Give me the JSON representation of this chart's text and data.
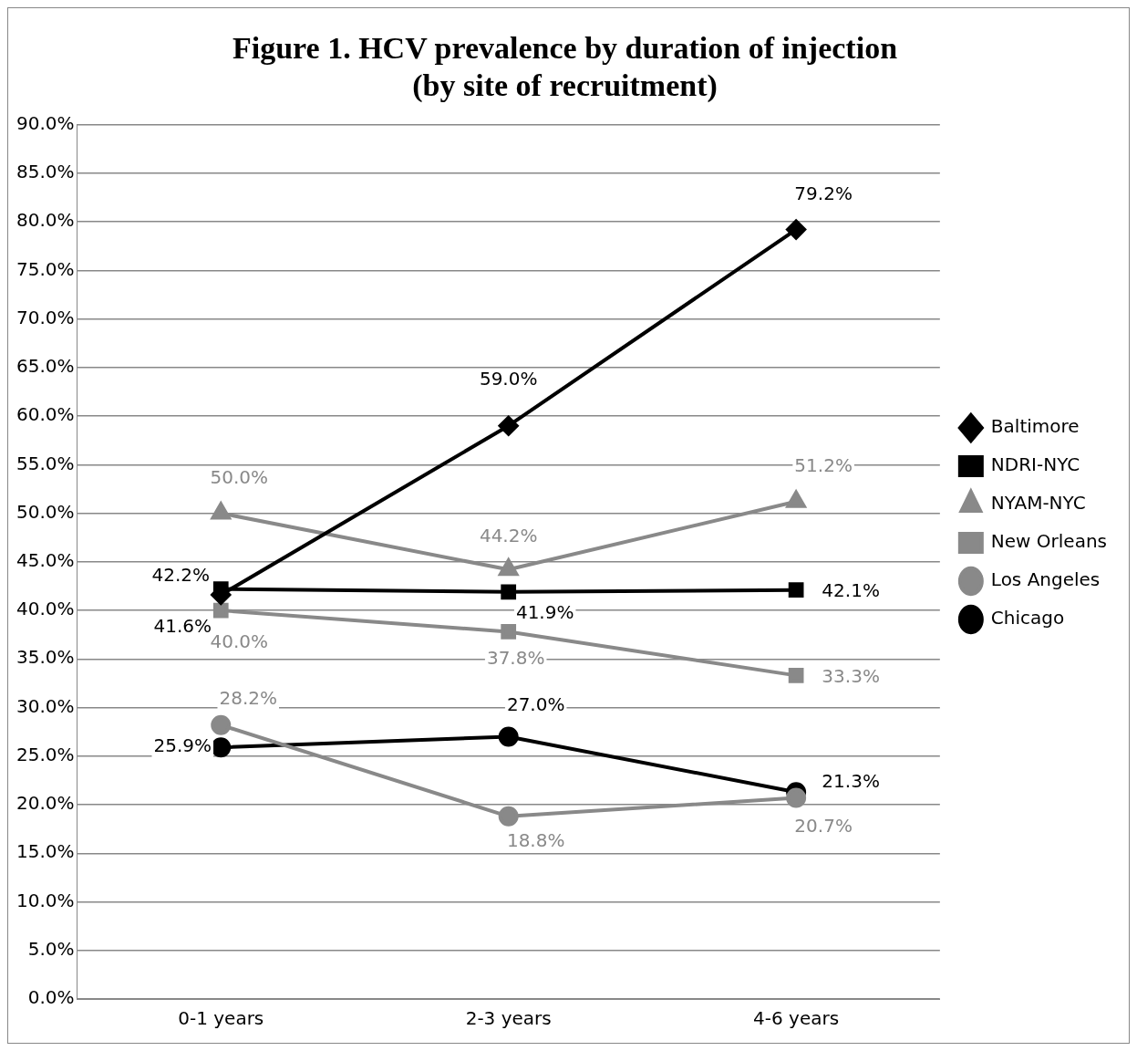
{
  "chart_data": {
    "type": "line",
    "title": "Figure 1. HCV prevalence by duration of injection\n(by site of recruitment)",
    "categories": [
      "0-1 years",
      "2-3 years",
      "4-6 years"
    ],
    "series": [
      {
        "name": "Baltimore",
        "color": "#000000",
        "marker": "diamond",
        "values": [
          41.6,
          59.0,
          79.2
        ],
        "value_labels": [
          "41.6%",
          "59.0%",
          "79.2%"
        ]
      },
      {
        "name": "NDRI-NYC",
        "color": "#000000",
        "marker": "square",
        "values": [
          42.2,
          41.9,
          42.1
        ],
        "value_labels": [
          "42.2%",
          "41.9%",
          "42.1%"
        ]
      },
      {
        "name": "NYAM-NYC",
        "color": "#898989",
        "marker": "triangle",
        "values": [
          50.0,
          44.2,
          51.2
        ],
        "value_labels": [
          "50.0%",
          "44.2%",
          "51.2%"
        ]
      },
      {
        "name": "New Orleans",
        "color": "#898989",
        "marker": "square",
        "values": [
          40.0,
          37.8,
          33.3
        ],
        "value_labels": [
          "40.0%",
          "37.8%",
          "33.3%"
        ]
      },
      {
        "name": "Los Angeles",
        "color": "#898989",
        "marker": "circle",
        "values": [
          28.2,
          18.8,
          20.7
        ],
        "value_labels": [
          "28.2%",
          "18.8%",
          "20.7%"
        ]
      },
      {
        "name": "Chicago",
        "color": "#000000",
        "marker": "circle",
        "values": [
          25.9,
          27.0,
          21.3
        ],
        "value_labels": [
          "25.9%",
          "27.0%",
          "21.3%"
        ]
      }
    ],
    "ylim": [
      0,
      90
    ],
    "yticks": [
      {
        "value": 0,
        "label": "0.0%"
      },
      {
        "value": 5,
        "label": "5.0%"
      },
      {
        "value": 10,
        "label": "10.0%"
      },
      {
        "value": 15,
        "label": "15.0%"
      },
      {
        "value": 20,
        "label": "20.0%"
      },
      {
        "value": 25,
        "label": "25.0%"
      },
      {
        "value": 30,
        "label": "30.0%"
      },
      {
        "value": 35,
        "label": "35.0%"
      },
      {
        "value": 40,
        "label": "40.0%"
      },
      {
        "value": 45,
        "label": "45.0%"
      },
      {
        "value": 50,
        "label": "50.0%"
      },
      {
        "value": 55,
        "label": "55.0%"
      },
      {
        "value": 60,
        "label": "60.0%"
      },
      {
        "value": 65,
        "label": "65.0%"
      },
      {
        "value": 70,
        "label": "70.0%"
      },
      {
        "value": 75,
        "label": "75.0%"
      },
      {
        "value": 80,
        "label": "80.0%"
      },
      {
        "value": 85,
        "label": "85.0%"
      },
      {
        "value": 90,
        "label": "90.0%"
      }
    ],
    "grid": "y",
    "legend": "right",
    "line_style": "solid"
  }
}
